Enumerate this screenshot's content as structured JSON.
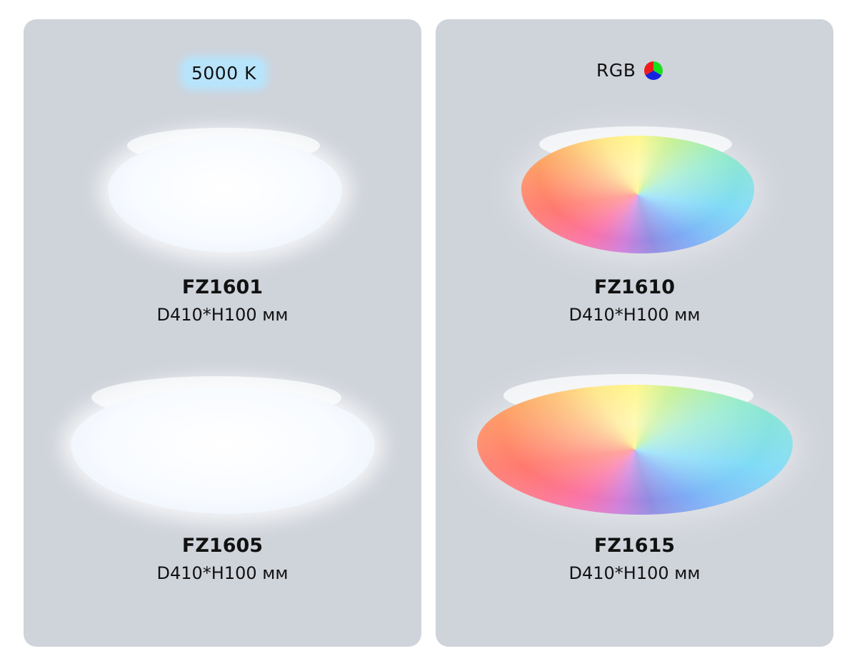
{
  "left_panel": {
    "badge": "5000 K",
    "badge_color": "#b8e4fb",
    "products": [
      {
        "model": "FZ1601",
        "dimensions": "D410*H100 мм"
      },
      {
        "model": "FZ1605",
        "dimensions": "D410*H100 мм"
      }
    ]
  },
  "right_panel": {
    "badge": "RGB",
    "badge_icon": "rgb-color-wheel-icon",
    "products": [
      {
        "model": "FZ1610",
        "dimensions": "D410*H100 мм"
      },
      {
        "model": "FZ1615",
        "dimensions": "D410*H100 мм"
      }
    ]
  },
  "panel_color": "#cfd3da"
}
